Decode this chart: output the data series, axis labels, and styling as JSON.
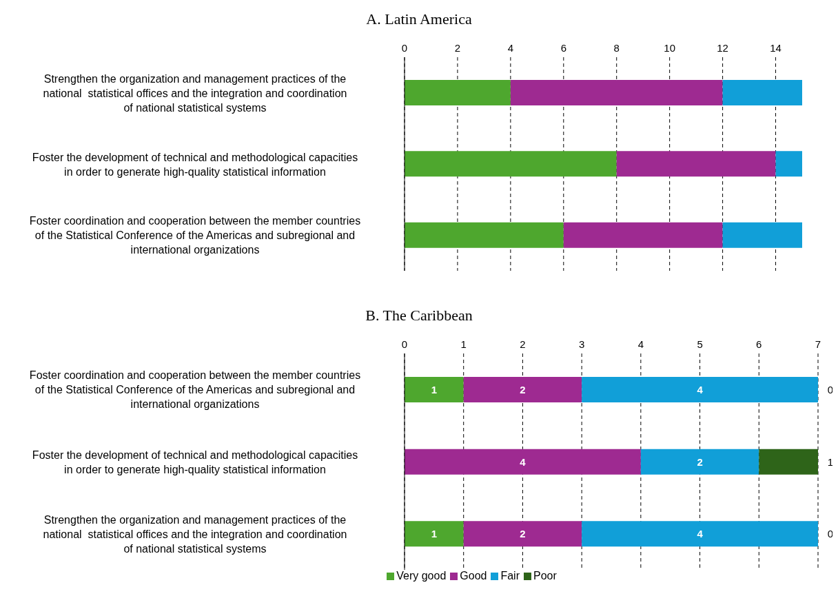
{
  "chart_data": [
    {
      "type": "bar",
      "orientation": "horizontal",
      "stacked": true,
      "title": "A. Latin America",
      "categories": [
        "Strengthen the organization and management practices of the national  statistical offices and the integration and coordination of national statistical systems",
        "Foster the development of technical and methodological capacities in order to generate high-quality statistical information",
        "Foster coordination and cooperation between the member countries of the Statistical Conference of the Americas and subregional and international organizations"
      ],
      "series": [
        {
          "color": "#4ea72e",
          "values": [
            4,
            8,
            6
          ]
        },
        {
          "color": "#9e2a91",
          "values": [
            8,
            6,
            6
          ]
        },
        {
          "color": "#119fd8",
          "values": [
            3,
            1,
            3
          ]
        }
      ],
      "xlim": [
        0,
        15
      ],
      "xticks": [
        0,
        2,
        4,
        6,
        8,
        10,
        12,
        14
      ],
      "grid": "x"
    },
    {
      "type": "bar",
      "orientation": "horizontal",
      "stacked": true,
      "title": "B. The Caribbean",
      "categories": [
        "Foster coordination and cooperation between the member countries of the Statistical Conference of the Americas and subregional and international organizations",
        "Foster the development of technical and methodological capacities in order to generate high-quality statistical information",
        "Strengthen the organization and management practices of the national  statistical offices and the integration and coordination of national statistical systems"
      ],
      "series": [
        {
          "name": "Very good",
          "color": "#4ea72e",
          "values": [
            1,
            0,
            1
          ],
          "value_labels": [
            "1",
            null,
            "1"
          ]
        },
        {
          "name": "Good",
          "color": "#9e2a91",
          "values": [
            2,
            4,
            2
          ],
          "value_labels": [
            "2",
            "4",
            "2"
          ]
        },
        {
          "name": "Fair",
          "color": "#119fd8",
          "values": [
            4,
            2,
            4
          ],
          "value_labels": [
            "4",
            "2",
            "4"
          ]
        },
        {
          "name": "Poor",
          "color": "#2e6419",
          "values": [
            0,
            1,
            0
          ],
          "value_labels": [
            "0",
            "1",
            "0"
          ]
        }
      ],
      "xlim": [
        0,
        7
      ],
      "xticks": [
        0,
        1,
        2,
        3,
        4,
        5,
        6,
        7
      ],
      "grid": "x",
      "legend": "bottom"
    }
  ]
}
